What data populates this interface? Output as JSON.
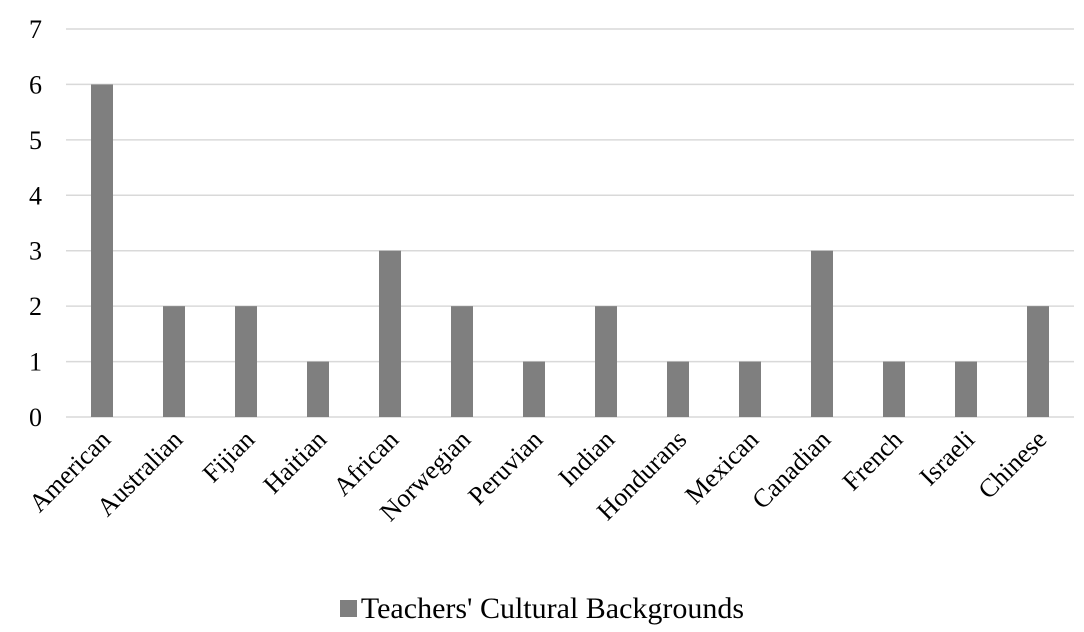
{
  "chart_data": {
    "type": "bar",
    "categories": [
      "American",
      "Australian",
      "Fijian",
      "Haitian",
      "African",
      "Norwegian",
      "Peruvian",
      "Indian",
      "Hondurans",
      "Mexican",
      "Canadian",
      "French",
      "Israeli",
      "Chinese"
    ],
    "series": [
      {
        "name": "Teachers' Cultural Backgrounds",
        "values": [
          6,
          2,
          2,
          1,
          3,
          2,
          1,
          2,
          1,
          1,
          3,
          1,
          1,
          2
        ],
        "color": "#7f7f7f"
      }
    ],
    "ylim": [
      0,
      7
    ],
    "yticks": [
      "0",
      "1",
      "2",
      "3",
      "4",
      "5",
      "6",
      "7"
    ],
    "grid": true,
    "legend_position": "bottom"
  }
}
